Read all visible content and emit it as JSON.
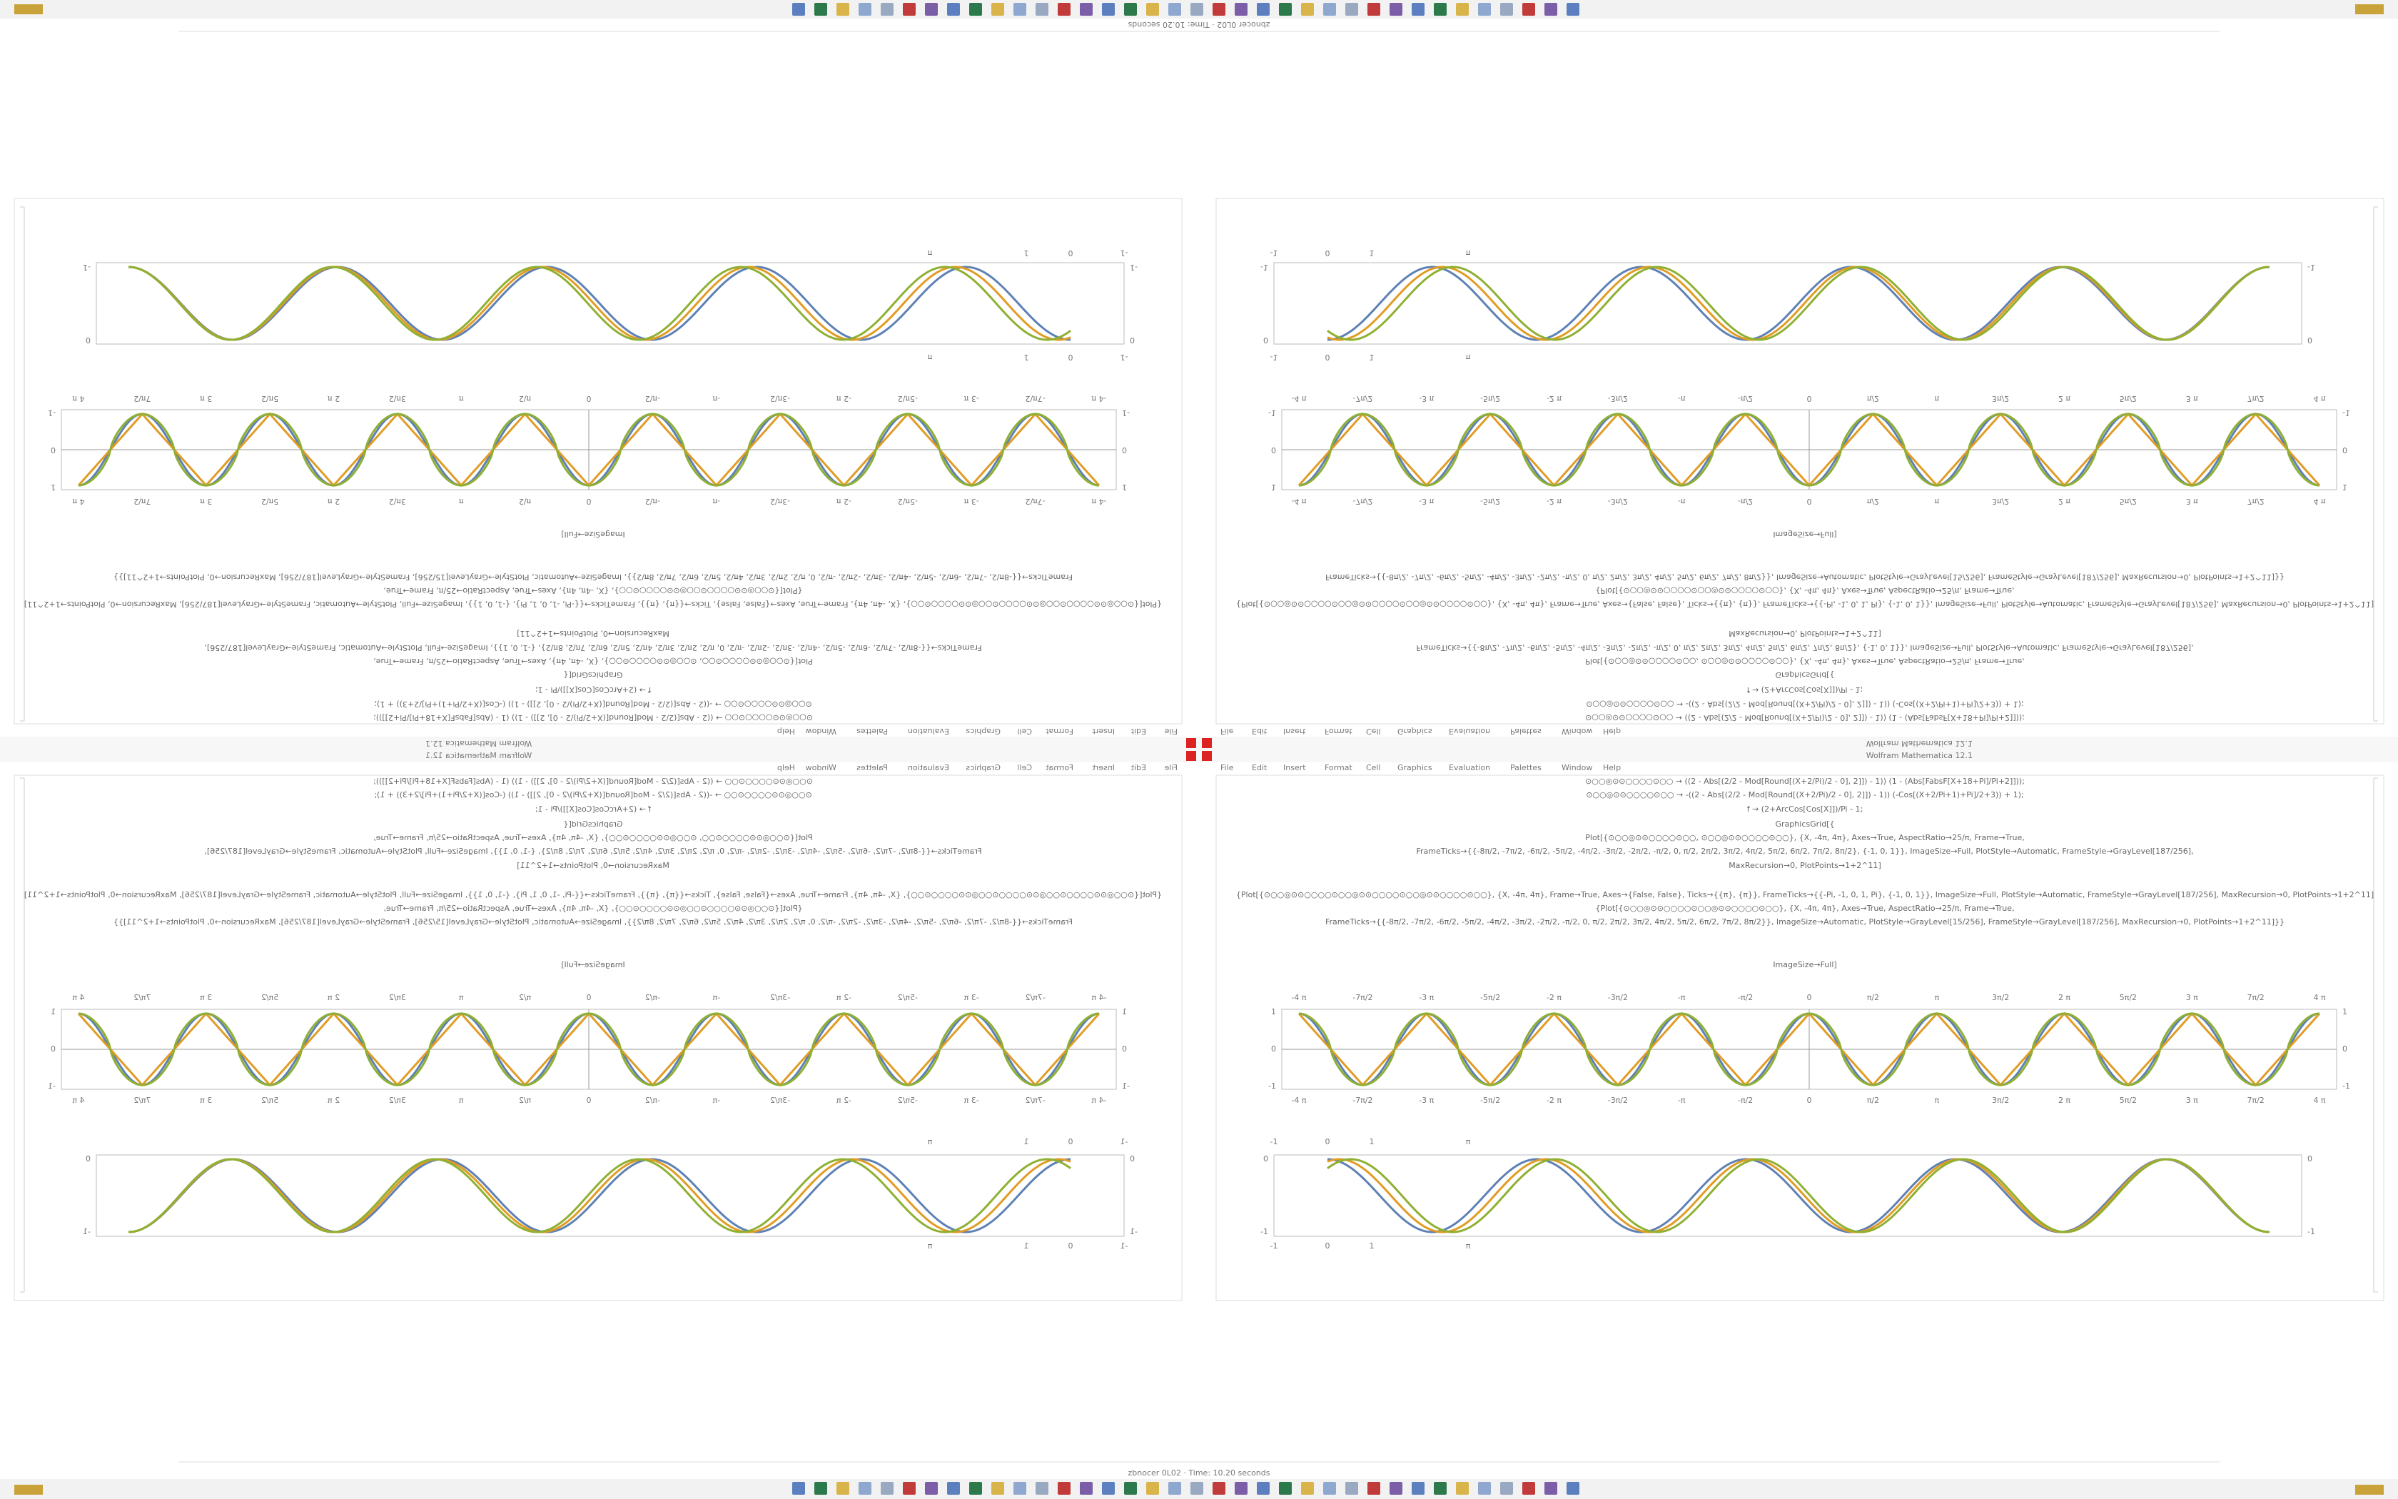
{
  "window_title": "Wolfram Mathematica 12.1",
  "status": "zbnocer 0L02 · Time: 10.20 seconds",
  "menu": [
    "File",
    "Edit",
    "Insert",
    "Format",
    "Cell",
    "Graphics",
    "Evaluation",
    "Palettes",
    "Window",
    "Help"
  ],
  "code": [
    "⊙○○◎⊙⊙○○○○⊙○○ → ((2 - Abs[(2/2 - Mod[Round[(X+2/Pi)/2 - 0], 2]]) - 1)) (1 - (Abs[FabsF[X+18+Pi]/Pi+2]]));",
    "⊙○○◎⊙⊙○○○○⊙○○ → -((2 - Abs[(2/2 - Mod[Round[(X+2/Pi)/2 - 0], 2]]) - 1)) (-Cos[(X+2/Pi+1)+Pi]/2+3)) + 1);",
    "f → (2+ArcCos[Cos[X]])/Pi - 1;",
    "GraphicsGrid[{",
    "Plot[{⊙○○◎⊙⊙○○○○⊙○○, ⊙○○◎⊙⊙○○○○⊙○○}, {X, -4π, 4π}, Axes→True, AspectRatio→25/π, Frame→True,",
    "FrameTicks→{{-8π/2, -7π/2, -6π/2, -5π/2, -4π/2, -3π/2, -2π/2, -π/2, 0, π/2, 2π/2, 3π/2, 4π/2, 5π/2, 6π/2, 7π/2, 8π/2}, {-1, 0, 1}}, ImageSize→Full, PlotStyle→Automatic, FrameStyle→GrayLevel[187/256],",
    "MaxRecursion→0, PlotPoints→1+2^11]",
    "{Plot[{⊙○○◎⊙⊙○○○○⊙○○◎⊙⊙○○○○⊙○○◎⊙⊙○○○○⊙○○}, {X, -4π, 4π}, Frame→True, Axes→{False, False}, Ticks→{{π}, {π}}, FrameTicks→{{-Pi, -1, 0, 1, Pi}, {-1, 0, 1}}, ImageSize→Full, PlotStyle→Automatic, FrameStyle→GrayLevel[187/256], MaxRecursion→0, PlotPoints→1+2^11]",
    "{Plot[{⊙○○◎⊙⊙○○○○⊙○○◎⊙⊙○○○○⊙○○}, {X, -4π, 4π}, Axes→True, AspectRatio→25/π, Frame→True,",
    "FrameTicks→{{-8π/2, -7π/2, -6π/2, -5π/2, -4π/2, -3π/2, -2π/2, -π/2, 0, π/2, 2π/2, 3π/2, 4π/2, 5π/2, 6π/2, 7π/2, 8π/2}}, ImageSize→Automatic, PlotStyle→GrayLevel[15/256], FrameStyle→GrayLevel[187/256], MaxRecursion→0, PlotPoints→1+2^11]}}",
    "ImageSize→Full]"
  ],
  "plot1": {
    "xticks": [
      "-4 π",
      "-7π/2",
      "-3 π",
      "-5π/2",
      "-2 π",
      "-3π/2",
      "-π",
      "-π/2",
      "0",
      "π/2",
      "π",
      "3π/2",
      "2 π",
      "5π/2",
      "3 π",
      "7π/2",
      "4 π"
    ],
    "yticks": [
      "1",
      "0",
      "-1"
    ]
  },
  "plot2": {
    "xticks": [
      "-1",
      "0",
      "1",
      "π"
    ],
    "yticks": [
      "0",
      "-1"
    ]
  }
}
